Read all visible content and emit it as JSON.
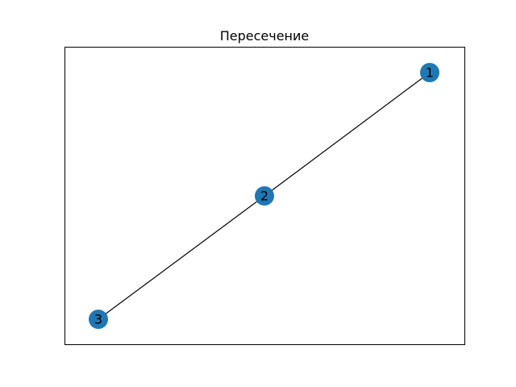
{
  "figure": {
    "title": "Пересечение"
  },
  "graph": {
    "node_color": "#1f77b4",
    "edge_color": "#000000",
    "nodes": [
      {
        "id": "1",
        "label": "1"
      },
      {
        "id": "2",
        "label": "2"
      },
      {
        "id": "3",
        "label": "3"
      }
    ],
    "edges": [
      {
        "from": "1",
        "to": "2"
      },
      {
        "from": "2",
        "to": "3"
      }
    ]
  }
}
